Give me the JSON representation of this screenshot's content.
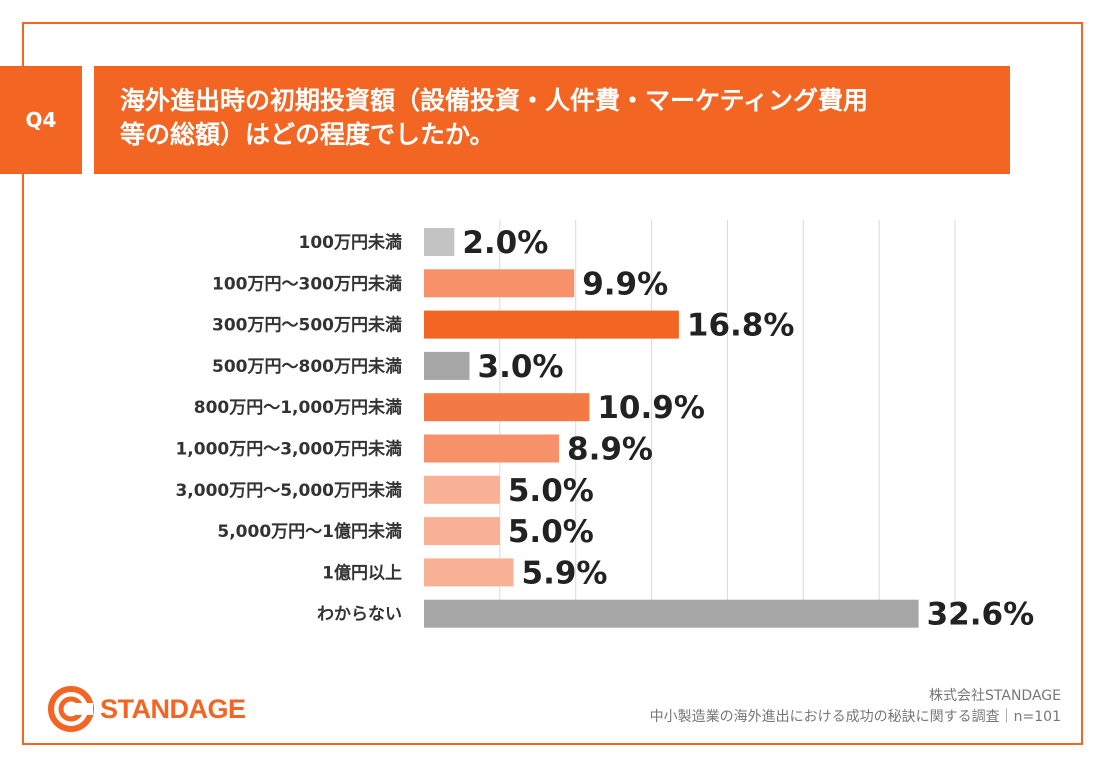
{
  "question": {
    "badge": "Q4",
    "title_line1": "海外進出時の初期投資額（設備投資・人件費・マーケティング費用",
    "title_line2": "等の総額）はどの程度でしたか。"
  },
  "colors": {
    "accent": "#f26522",
    "gray_light": "#c3c3c3",
    "gray_dark": "#a6a6a6",
    "orange_strong": "#f26522",
    "orange_mid": "#f47a45",
    "orange_soft": "#f7916a",
    "orange_light": "#f9b196",
    "gridline": "#d9d9d9"
  },
  "chart_data": {
    "type": "bar",
    "orientation": "horizontal",
    "title": "海外進出時の初期投資額（設備投資・人件費・マーケティング費用等の総額）はどの程度でしたか。",
    "categories": [
      "100万円未満",
      "100万円〜300万円未満",
      "300万円〜500万円未満",
      "500万円〜800万円未満",
      "800万円〜1,000万円未満",
      "1,000万円〜3,000万円未満",
      "3,000万円〜5,000万円未満",
      "5,000万円〜1億円未満",
      "1億円以上",
      "わからない"
    ],
    "values": [
      2.0,
      9.9,
      16.8,
      3.0,
      10.9,
      8.9,
      5.0,
      5.0,
      5.9,
      32.6
    ],
    "value_labels": [
      "2.0%",
      "9.9%",
      "16.8%",
      "3.0%",
      "10.9%",
      "8.9%",
      "5.0%",
      "5.0%",
      "5.9%",
      "32.6%"
    ],
    "bar_colors": [
      "#c3c3c3",
      "#f7916a",
      "#f26522",
      "#a6a6a6",
      "#f47a45",
      "#f7916a",
      "#f9b196",
      "#f9b196",
      "#f9b196",
      "#a6a6a6"
    ],
    "xlim": [
      0,
      35
    ],
    "gridline_step": 5,
    "unit": "%",
    "grid": true,
    "legend": "none"
  },
  "footer": {
    "brand": "STANDAGE",
    "company": "株式会社STANDAGE",
    "survey": "中小製造業の海外進出における成功の秘訣に関する調査｜n=101"
  }
}
